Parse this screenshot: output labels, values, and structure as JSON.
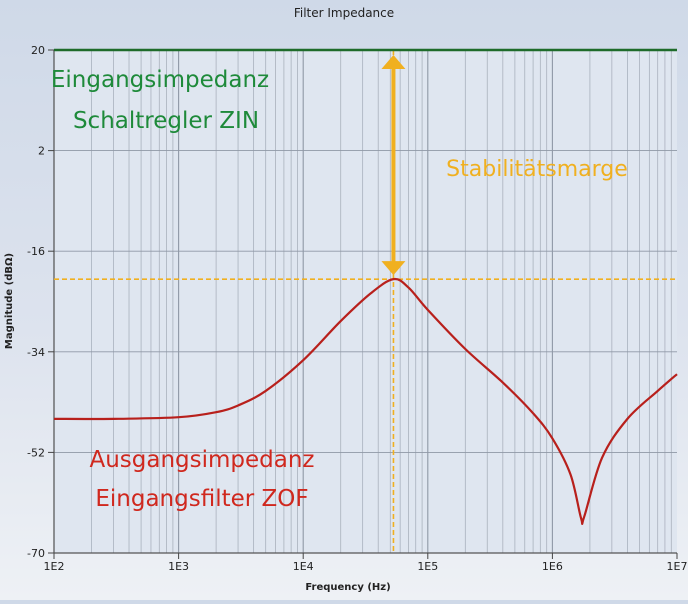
{
  "chart_data": {
    "type": "line",
    "title": "Filter Impedance",
    "xlabel": "Frequency (Hz)",
    "ylabel": "Magnitude (dBΩ)",
    "xscale": "log",
    "xlim": [
      100,
      10000000
    ],
    "ylim": [
      -70,
      20
    ],
    "grid": true,
    "x_ticks": [
      "1E2",
      "1E3",
      "1E4",
      "1E5",
      "1E6",
      "1E7"
    ],
    "y_ticks": [
      20,
      2,
      -16,
      -34,
      -52,
      -70
    ],
    "series": [
      {
        "name": "Eingangsimpedanz Schaltregler ZIN",
        "color": "#1e6b2a",
        "x": [
          100,
          10000000
        ],
        "y": [
          20,
          20
        ]
      },
      {
        "name": "Ausgangsimpedanz Eingangsfilter ZOF",
        "color": "#b8201c",
        "x": [
          100,
          300,
          1000,
          2000,
          3000,
          5000,
          10000,
          20000,
          35000,
          53000,
          70000,
          100000,
          200000,
          400000,
          700000,
          1000000,
          1400000,
          1700000,
          1800000,
          2500000,
          4000000,
          7000000,
          10000000
        ],
        "y": [
          -46,
          -46,
          -45.7,
          -44.8,
          -43.6,
          -41,
          -35.5,
          -28.5,
          -23.5,
          -21,
          -22.5,
          -26.5,
          -33.5,
          -39.5,
          -45,
          -49.5,
          -56,
          -63.8,
          -63.5,
          -53,
          -46,
          -41,
          -38
        ]
      }
    ],
    "annotations": [
      {
        "text_lines": [
          "Eingangsimpedanz",
          "Schaltregler ZIN"
        ],
        "color": "#1e8a3a"
      },
      {
        "text_lines": [
          "Ausgangsimpedanz",
          "Eingangsfilter ZOF"
        ],
        "color": "#d0281e"
      },
      {
        "text": "Stabilitätsmarge",
        "color": "#f0b020"
      }
    ],
    "markers": {
      "peak_frequency_hz": 53000,
      "peak_magnitude_db": -21,
      "stability_arrow": {
        "from_db": 20,
        "to_db": -21,
        "color": "#f0b020"
      },
      "dashed_lines_color": "#f0b020"
    }
  },
  "labels": {
    "title": "Filter Impedance",
    "xlabel": "Frequency (Hz)",
    "ylabel": "Magnitude (dBΩ)",
    "zin_line1": "Eingangsimpedanz",
    "zin_line2": "Schaltregler ZIN",
    "zof_line1": "Ausgangsimpedanz",
    "zof_line2": "Eingangsfilter ZOF",
    "margin": "Stabilitätsmarge"
  }
}
